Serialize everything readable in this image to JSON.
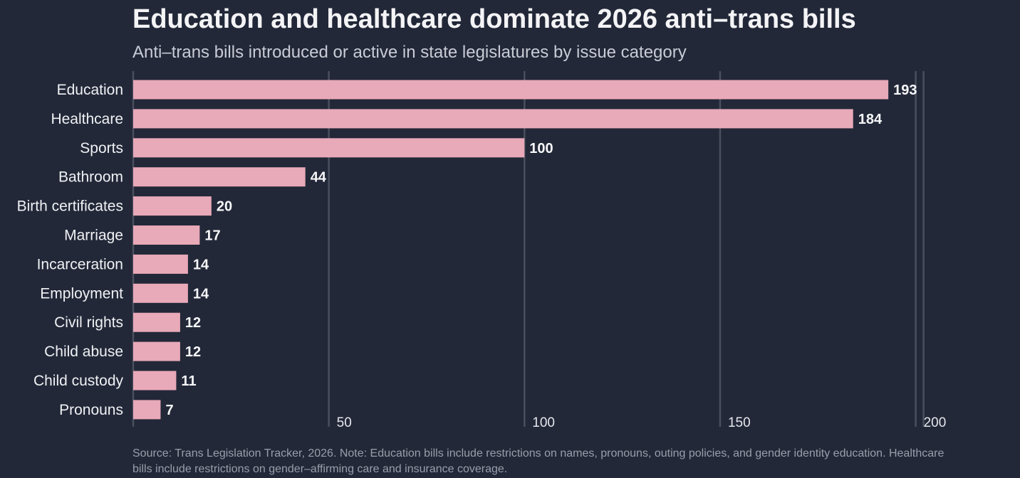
{
  "chart_data": {
    "type": "bar",
    "orientation": "horizontal",
    "title": "Education and healthcare dominate 2026 anti–trans bills",
    "subtitle": "Anti–trans bills introduced or active in state legislatures by issue category",
    "categories": [
      "Education",
      "Healthcare",
      "Sports",
      "Bathroom",
      "Birth certificates",
      "Marriage",
      "Incarceration",
      "Employment",
      "Civil rights",
      "Child abuse",
      "Child custody",
      "Pronouns"
    ],
    "values": [
      193,
      184,
      100,
      44,
      20,
      17,
      14,
      14,
      12,
      12,
      11,
      7
    ],
    "xlim": [
      0,
      202
    ],
    "xticks": [
      50,
      100,
      150,
      200
    ],
    "xtick_labels": [
      "50",
      "100",
      "150",
      "200"
    ],
    "grid": true,
    "bar_color": "#e8a9b8",
    "grid_color": "#4a4f5e",
    "source_note": "Source: Trans Legislation Tracker, 2026. Note: Education bills include restrictions on names, pronouns, outing policies, and gender identity education. Healthcare bills include restrictions on gender–affirming care and insurance coverage."
  }
}
